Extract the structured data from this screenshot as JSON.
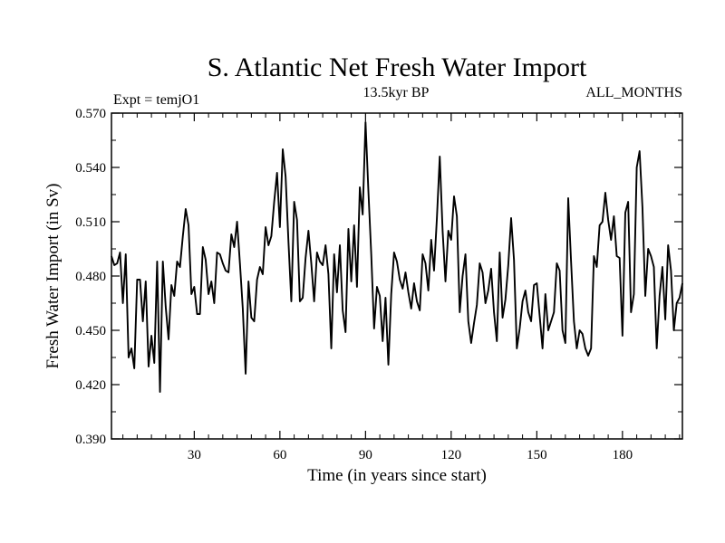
{
  "chart_data": {
    "type": "line",
    "title": "S. Atlantic Net Fresh Water Import",
    "subtitle_left": "Expt = temjO1",
    "subtitle_center": "13.5kyr BP",
    "subtitle_right": "ALL_MONTHS",
    "xlabel": "Time (in years since start)",
    "ylabel": "Fresh Water Import (in Sv)",
    "xlim": [
      1,
      201
    ],
    "ylim": [
      0.39,
      0.57
    ],
    "xticks": [
      30,
      60,
      90,
      120,
      150,
      180
    ],
    "xtick_labels": [
      "30",
      "60",
      "90",
      "120",
      "150",
      "180"
    ],
    "yticks": [
      0.39,
      0.42,
      0.45,
      0.48,
      0.51,
      0.54,
      0.57
    ],
    "ytick_labels": [
      "0.390",
      "0.420",
      "0.450",
      "0.480",
      "0.510",
      "0.540",
      "0.570"
    ],
    "line_color": "#000000",
    "series": [
      {
        "name": "Fresh Water Import",
        "x": [
          1,
          2,
          3,
          4,
          5,
          6,
          7,
          8,
          9,
          10,
          11,
          12,
          13,
          14,
          15,
          16,
          17,
          18,
          19,
          20,
          21,
          22,
          23,
          24,
          25,
          26,
          27,
          28,
          29,
          30,
          31,
          32,
          33,
          34,
          35,
          36,
          37,
          38,
          39,
          40,
          41,
          42,
          43,
          44,
          45,
          46,
          47,
          48,
          49,
          50,
          51,
          52,
          53,
          54,
          55,
          56,
          57,
          58,
          59,
          60,
          61,
          62,
          63,
          64,
          65,
          66,
          67,
          68,
          69,
          70,
          71,
          72,
          73,
          74,
          75,
          76,
          77,
          78,
          79,
          80,
          81,
          82,
          83,
          84,
          85,
          86,
          87,
          88,
          89,
          90,
          91,
          92,
          93,
          94,
          95,
          96,
          97,
          98,
          99,
          100,
          101,
          102,
          103,
          104,
          105,
          106,
          107,
          108,
          109,
          110,
          111,
          112,
          113,
          114,
          115,
          116,
          117,
          118,
          119,
          120,
          121,
          122,
          123,
          124,
          125,
          126,
          127,
          128,
          129,
          130,
          131,
          132,
          133,
          134,
          135,
          136,
          137,
          138,
          139,
          140,
          141,
          142,
          143,
          144,
          145,
          146,
          147,
          148,
          149,
          150,
          151,
          152,
          153,
          154,
          155,
          156,
          157,
          158,
          159,
          160,
          161,
          162,
          163,
          164,
          165,
          166,
          167,
          168,
          169,
          170,
          171,
          172,
          173,
          174,
          175,
          176,
          177,
          178,
          179,
          180,
          181,
          182,
          183,
          184,
          185,
          186,
          187,
          188,
          189,
          190,
          191,
          192,
          193,
          194,
          195,
          196,
          197,
          198,
          199,
          200,
          201
        ],
        "values": [
          0.491,
          0.486,
          0.487,
          0.493,
          0.465,
          0.492,
          0.435,
          0.44,
          0.429,
          0.478,
          0.478,
          0.455,
          0.477,
          0.43,
          0.447,
          0.432,
          0.488,
          0.416,
          0.488,
          0.463,
          0.445,
          0.475,
          0.469,
          0.488,
          0.485,
          0.502,
          0.517,
          0.508,
          0.47,
          0.474,
          0.459,
          0.459,
          0.496,
          0.489,
          0.47,
          0.477,
          0.465,
          0.493,
          0.492,
          0.487,
          0.483,
          0.482,
          0.503,
          0.496,
          0.51,
          0.487,
          0.462,
          0.426,
          0.477,
          0.457,
          0.455,
          0.478,
          0.485,
          0.481,
          0.507,
          0.497,
          0.502,
          0.521,
          0.537,
          0.507,
          0.55,
          0.535,
          0.499,
          0.466,
          0.521,
          0.511,
          0.466,
          0.468,
          0.49,
          0.505,
          0.487,
          0.466,
          0.493,
          0.488,
          0.486,
          0.497,
          0.481,
          0.44,
          0.492,
          0.471,
          0.497,
          0.461,
          0.449,
          0.506,
          0.477,
          0.508,
          0.474,
          0.529,
          0.514,
          0.565,
          0.527,
          0.492,
          0.451,
          0.474,
          0.469,
          0.444,
          0.468,
          0.431,
          0.47,
          0.493,
          0.488,
          0.478,
          0.473,
          0.482,
          0.471,
          0.462,
          0.476,
          0.466,
          0.461,
          0.492,
          0.487,
          0.472,
          0.5,
          0.483,
          0.512,
          0.546,
          0.505,
          0.477,
          0.505,
          0.5,
          0.524,
          0.513,
          0.46,
          0.48,
          0.492,
          0.455,
          0.443,
          0.454,
          0.464,
          0.487,
          0.482,
          0.465,
          0.472,
          0.484,
          0.46,
          0.444,
          0.493,
          0.457,
          0.467,
          0.486,
          0.512,
          0.489,
          0.44,
          0.451,
          0.466,
          0.472,
          0.46,
          0.455,
          0.475,
          0.476,
          0.458,
          0.44,
          0.47,
          0.45,
          0.455,
          0.46,
          0.487,
          0.483,
          0.45,
          0.443,
          0.523,
          0.488,
          0.455,
          0.44,
          0.45,
          0.448,
          0.44,
          0.436,
          0.44,
          0.491,
          0.485,
          0.508,
          0.51,
          0.526,
          0.511,
          0.5,
          0.513,
          0.491,
          0.49,
          0.447,
          0.515,
          0.521,
          0.46,
          0.47,
          0.54,
          0.549,
          0.518,
          0.469,
          0.495,
          0.491,
          0.485,
          0.44,
          0.469,
          0.485,
          0.456,
          0.497,
          0.483,
          0.45,
          0.465,
          0.468,
          0.476
        ]
      }
    ]
  }
}
